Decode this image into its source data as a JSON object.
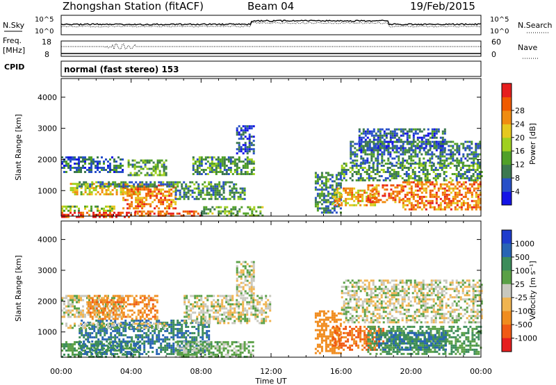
{
  "header": {
    "station": "Zhongshan Station (fitACF)",
    "beam": "Beam 04",
    "date": "19/Feb/2015"
  },
  "strip_noise": {
    "left_label": "N.Sky",
    "right_label": "N.Search",
    "left_ticks": [
      "10^5",
      "10^0"
    ],
    "right_ticks": [
      "10^5",
      "10^0"
    ]
  },
  "strip_freq": {
    "left_label_1": "Freq.",
    "left_label_2": "[MHz]",
    "right_label": "Nave",
    "left_ticks": [
      "18",
      "8"
    ],
    "right_ticks": [
      "60",
      "0"
    ]
  },
  "cpid": {
    "label": "CPID",
    "text": "normal (fast stereo) 153"
  },
  "xaxis": {
    "title": "Time UT",
    "ticks": [
      "00:00",
      "04:00",
      "08:00",
      "12:00",
      "16:00",
      "20:00",
      "00:00"
    ]
  },
  "chart_data": [
    {
      "type": "heatmap",
      "title": "",
      "ylabel": "Slant Range [km]",
      "xlabel": "Time UT",
      "xlim": [
        0,
        24
      ],
      "ylim": [
        180,
        4600
      ],
      "yticks": [
        1000,
        2000,
        3000,
        4000
      ],
      "colorbar": {
        "label": "Power [dB]",
        "ticks": [
          "4",
          "8",
          "12",
          "16",
          "20",
          "24",
          "28"
        ],
        "range": [
          0,
          30
        ],
        "colors": [
          "#1414e6",
          "#2850c8",
          "#3c7850",
          "#50a028",
          "#a0d020",
          "#e6c81e",
          "#f08c10",
          "#f05a00",
          "#e61e1e"
        ]
      },
      "echo_regions": [
        {
          "t": [
            0,
            4.2
          ],
          "r": [
            180,
            320
          ],
          "value": 27
        },
        {
          "t": [
            4.2,
            8.0
          ],
          "r": [
            200,
            360
          ],
          "value": 24
        },
        {
          "t": [
            0,
            3.0
          ],
          "r": [
            320,
            520
          ],
          "value": 14
        },
        {
          "t": [
            0.5,
            4.5
          ],
          "r": [
            900,
            1250
          ],
          "value": 18
        },
        {
          "t": [
            3.5,
            6.5
          ],
          "r": [
            400,
            1200
          ],
          "value": 23
        },
        {
          "t": [
            0,
            3.5
          ],
          "r": [
            1600,
            2100
          ],
          "value": 7
        },
        {
          "t": [
            3.8,
            6.0
          ],
          "r": [
            1500,
            2000
          ],
          "value": 11
        },
        {
          "t": [
            1.0,
            10.0
          ],
          "r": [
            1100,
            1300
          ],
          "value": 9
        },
        {
          "t": [
            6.5,
            10.5
          ],
          "r": [
            700,
            1100
          ],
          "value": 9
        },
        {
          "t": [
            7.5,
            11.0
          ],
          "r": [
            1500,
            2100
          ],
          "value": 10
        },
        {
          "t": [
            8.0,
            11.5
          ],
          "r": [
            200,
            500
          ],
          "value": 12
        },
        {
          "t": [
            10.0,
            11.0
          ],
          "r": [
            2200,
            3100
          ],
          "value": 5
        },
        {
          "t": [
            14.5,
            16.0
          ],
          "r": [
            300,
            1600
          ],
          "value": 9
        },
        {
          "t": [
            15.5,
            18.0
          ],
          "r": [
            500,
            1100
          ],
          "value": 20
        },
        {
          "t": [
            17.5,
            19.5
          ],
          "r": [
            600,
            1200
          ],
          "value": 24
        },
        {
          "t": [
            19.5,
            24.0
          ],
          "r": [
            400,
            1300
          ],
          "value": 23
        },
        {
          "t": [
            16.0,
            24.0
          ],
          "r": [
            1300,
            1900
          ],
          "value": 10
        },
        {
          "t": [
            16.5,
            24.0
          ],
          "r": [
            1900,
            2600
          ],
          "value": 8
        },
        {
          "t": [
            17.0,
            22.0
          ],
          "r": [
            2300,
            3000
          ],
          "value": 6
        }
      ]
    },
    {
      "type": "heatmap",
      "title": "",
      "ylabel": "Slant Range [km]",
      "xlabel": "Time UT",
      "xlim": [
        0,
        24
      ],
      "ylim": [
        180,
        4600
      ],
      "yticks": [
        1000,
        2000,
        3000,
        4000
      ],
      "colorbar": {
        "label": "Velocity [m s⁻¹]",
        "ticks": [
          "1000",
          "500",
          "100",
          "25",
          "-25",
          "-100",
          "-500",
          "-1000"
        ],
        "colors": [
          "#1e3ccd",
          "#2864b4",
          "#3c8c5a",
          "#5aa046",
          "#c8c8be",
          "#f0b450",
          "#f08c1e",
          "#f05a14",
          "#e61e1e"
        ]
      },
      "echo_regions": [
        {
          "t": [
            0,
            4.5
          ],
          "r": [
            180,
            700
          ],
          "value": 100
        },
        {
          "t": [
            1.0,
            8.5
          ],
          "r": [
            300,
            1400
          ],
          "value": 500
        },
        {
          "t": [
            0,
            6.0
          ],
          "r": [
            1100,
            1300
          ],
          "value": 0
        },
        {
          "t": [
            0,
            3.5
          ],
          "r": [
            1500,
            2200
          ],
          "value": 0
        },
        {
          "t": [
            1.5,
            5.5
          ],
          "r": [
            1400,
            2200
          ],
          "value": -300
        },
        {
          "t": [
            7.0,
            12.0
          ],
          "r": [
            1300,
            2200
          ],
          "value": 0
        },
        {
          "t": [
            6.5,
            11.0
          ],
          "r": [
            200,
            700
          ],
          "value": 50
        },
        {
          "t": [
            10.0,
            11.0
          ],
          "r": [
            2200,
            3300
          ],
          "value": 0
        },
        {
          "t": [
            14.5,
            16.0
          ],
          "r": [
            300,
            1700
          ],
          "value": -200
        },
        {
          "t": [
            15.5,
            18.5
          ],
          "r": [
            400,
            1200
          ],
          "value": -600
        },
        {
          "t": [
            17.5,
            24.0
          ],
          "r": [
            300,
            1200
          ],
          "value": 100
        },
        {
          "t": [
            16.0,
            24.0
          ],
          "r": [
            1300,
            2700
          ],
          "value": 0
        },
        {
          "t": [
            18.0,
            22.0
          ],
          "r": [
            400,
            1000
          ],
          "value": 500
        }
      ]
    }
  ]
}
